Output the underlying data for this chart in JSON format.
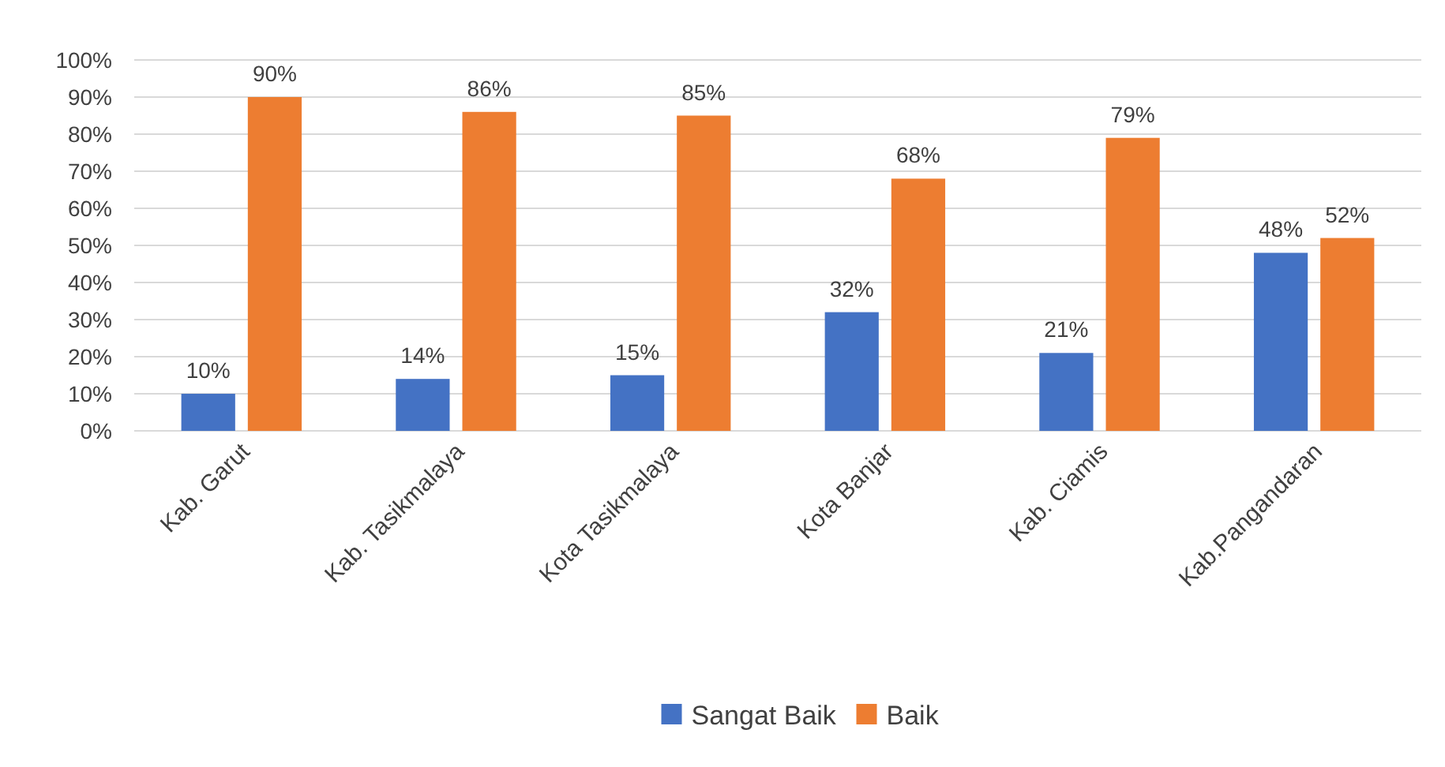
{
  "chart_data": {
    "type": "bar",
    "categories": [
      "Kab. Garut",
      "Kab. Tasikmalaya",
      "Kota Tasikmalaya",
      "Kota Banjar",
      "Kab. Ciamis",
      "Kab.Pangandaran"
    ],
    "series": [
      {
        "name": "Sangat Baik",
        "color": "#4472c4",
        "values": [
          10,
          14,
          15,
          32,
          21,
          48
        ],
        "value_labels": [
          "10%",
          "14%",
          "15%",
          "32%",
          "21%",
          "48%"
        ]
      },
      {
        "name": "Baik",
        "color": "#ed7d31",
        "values": [
          90,
          86,
          85,
          68,
          79,
          52
        ],
        "value_labels": [
          "90%",
          "86%",
          "85%",
          "68%",
          "79%",
          "52%"
        ]
      }
    ],
    "ylim": [
      0,
      100
    ],
    "yticks": [
      {
        "value": 0,
        "label": "0%"
      },
      {
        "value": 10,
        "label": "10%"
      },
      {
        "value": 20,
        "label": "20%"
      },
      {
        "value": 30,
        "label": "30%"
      },
      {
        "value": 40,
        "label": "40%"
      },
      {
        "value": 50,
        "label": "50%"
      },
      {
        "value": 60,
        "label": "60%"
      },
      {
        "value": 70,
        "label": "70%"
      },
      {
        "value": 80,
        "label": "80%"
      },
      {
        "value": 90,
        "label": "90%"
      },
      {
        "value": 100,
        "label": "100%"
      }
    ],
    "grid": "y",
    "legend": "bottom"
  }
}
